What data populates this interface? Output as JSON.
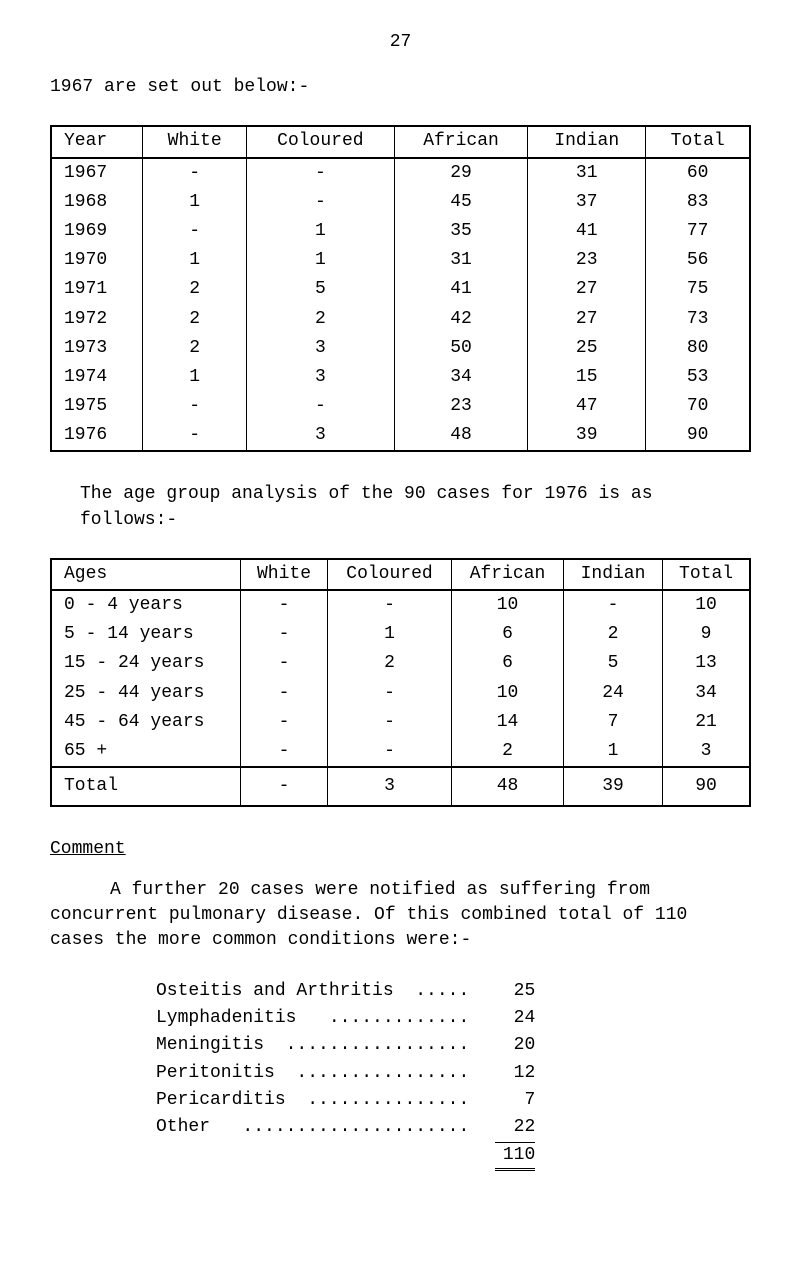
{
  "page_number": "27",
  "intro": "1967 are set out below:-",
  "table1": {
    "headers": [
      "Year",
      "White",
      "Coloured",
      "African",
      "Indian",
      "Total"
    ],
    "rows": [
      [
        "1967",
        "-",
        "-",
        "29",
        "31",
        "60"
      ],
      [
        "1968",
        "1",
        "-",
        "45",
        "37",
        "83"
      ],
      [
        "1969",
        "-",
        "1",
        "35",
        "41",
        "77"
      ],
      [
        "1970",
        "1",
        "1",
        "31",
        "23",
        "56"
      ],
      [
        "1971",
        "2",
        "5",
        "41",
        "27",
        "75"
      ],
      [
        "1972",
        "2",
        "2",
        "42",
        "27",
        "73"
      ],
      [
        "1973",
        "2",
        "3",
        "50",
        "25",
        "80"
      ],
      [
        "1974",
        "1",
        "3",
        "34",
        "15",
        "53"
      ],
      [
        "1975",
        "-",
        "-",
        "23",
        "47",
        "70"
      ],
      [
        "1976",
        "-",
        "3",
        "48",
        "39",
        "90"
      ]
    ]
  },
  "caption1": "The age group analysis of the 90 cases for 1976 is as follows:-",
  "table2": {
    "headers": [
      "Ages",
      "White",
      "Coloured",
      "African",
      "Indian",
      "Total"
    ],
    "rows": [
      [
        "0 -  4 years",
        "-",
        "-",
        "10",
        "-",
        "10"
      ],
      [
        "5 - 14 years",
        "-",
        "1",
        "6",
        "2",
        "9"
      ],
      [
        "15 - 24 years",
        "-",
        "2",
        "6",
        "5",
        "13"
      ],
      [
        "25 - 44 years",
        "-",
        "-",
        "10",
        "24",
        "34"
      ],
      [
        "45 - 64 years",
        "-",
        "-",
        "14",
        "7",
        "21"
      ],
      [
        "65 +",
        "-",
        "-",
        "2",
        "1",
        "3"
      ]
    ],
    "total_row": [
      "Total",
      "-",
      "3",
      "48",
      "39",
      "90"
    ]
  },
  "comment_heading": "Comment",
  "comment_body": "A further 20 cases were notified as suffering from concurrent pulmonary disease.  Of this combined total of 110 cases the more common conditions were:-",
  "conditions": {
    "rows": [
      [
        "Osteitis and Arthritis  .....",
        "25"
      ],
      [
        "Lymphadenitis   .............",
        "24"
      ],
      [
        "Meningitis  .................",
        "20"
      ],
      [
        "Peritonitis  ................",
        "12"
      ],
      [
        "Pericarditis  ...............",
        "7"
      ],
      [
        "Other   .....................",
        "22"
      ]
    ],
    "total": "110"
  }
}
